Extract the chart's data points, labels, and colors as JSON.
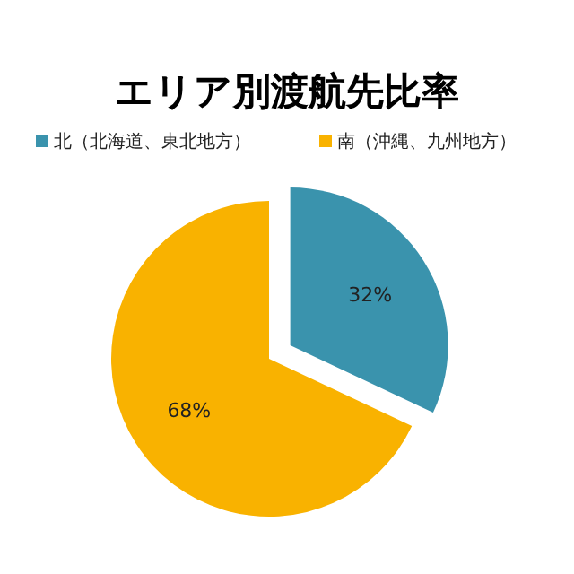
{
  "chart_data": {
    "type": "pie",
    "title": "エリア別渡航先比率",
    "categories": [
      "北（北海道、東北地方）",
      "南（沖縄、九州地方）"
    ],
    "values": [
      32,
      68
    ],
    "value_labels": [
      "32%",
      "68%"
    ],
    "colors": [
      "#3a93ad",
      "#f9b200"
    ],
    "legend": "top"
  }
}
